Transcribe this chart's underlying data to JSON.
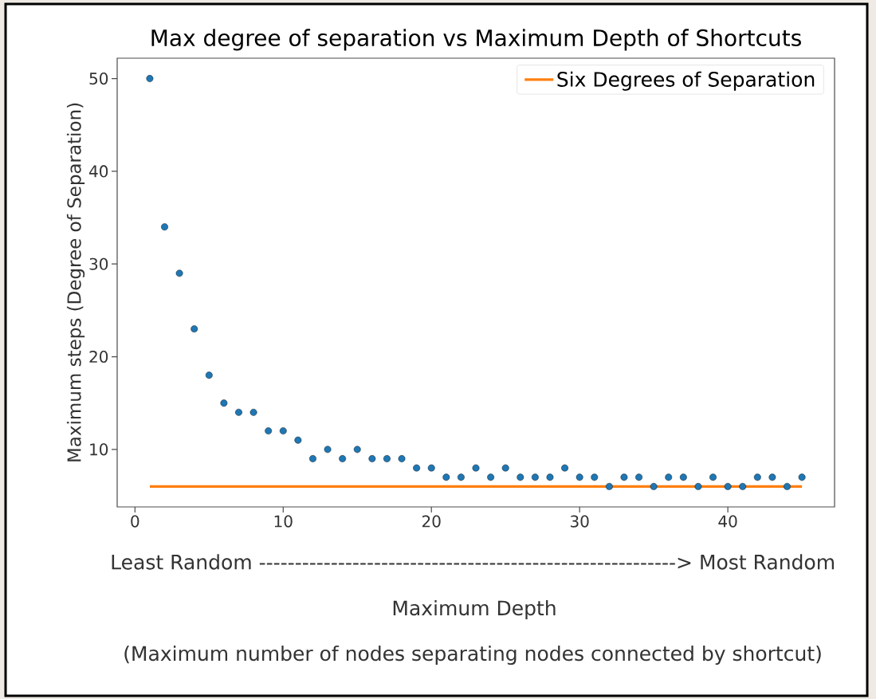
{
  "chart_data": {
    "type": "scatter",
    "title": "Max degree of separation vs Maximum Depth of Shortcuts",
    "ylabel": "Maximum steps (Degree of Separation)",
    "annotations": [
      "Least Random ----------------------------------------------------------> Most Random",
      "Maximum Depth",
      "(Maximum number of nodes separating nodes connected by shortcut)"
    ],
    "series": [
      {
        "color": "#1f77b4",
        "marker": "circle",
        "x": [
          1,
          2,
          3,
          4,
          5,
          6,
          7,
          8,
          9,
          10,
          11,
          12,
          13,
          14,
          15,
          16,
          17,
          18,
          19,
          20,
          21,
          22,
          23,
          24,
          25,
          26,
          27,
          28,
          29,
          30,
          31,
          32,
          33,
          34,
          35,
          36,
          37,
          38,
          39,
          40,
          41,
          42,
          43,
          44,
          45
        ],
        "values": [
          50,
          34,
          29,
          23,
          18,
          15,
          14,
          14,
          12,
          12,
          11,
          9,
          10,
          9,
          10,
          9,
          9,
          9,
          8,
          8,
          7,
          7,
          8,
          7,
          8,
          7,
          7,
          7,
          8,
          7,
          7,
          6,
          7,
          7,
          6,
          7,
          7,
          6,
          7,
          6,
          6,
          7,
          7,
          6,
          7
        ]
      },
      {
        "type": "line",
        "name": "Six Degrees of Separation",
        "color": "#ff7f0e",
        "marker": "none",
        "x": [
          1,
          45
        ],
        "values": [
          6,
          6
        ]
      }
    ],
    "xlim": [
      -1.2,
      47.2
    ],
    "ylim": [
      3.8,
      52.2
    ],
    "xticks": [
      0,
      10,
      20,
      30,
      40
    ],
    "yticks": [
      10,
      20,
      30,
      40,
      50
    ],
    "legend": "top right"
  }
}
